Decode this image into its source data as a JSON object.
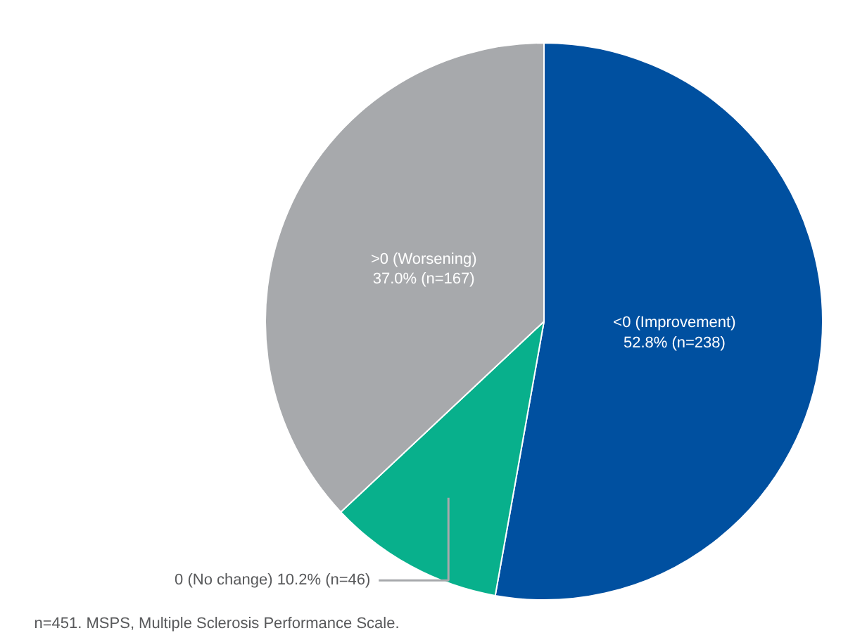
{
  "chart_data": {
    "type": "pie",
    "categories": [
      "<0 (Improvement)",
      "0 (No change)",
      ">0 (Worsening)"
    ],
    "values": [
      52.8,
      10.2,
      37.0
    ],
    "colors": [
      "#0050a0",
      "#08b08c",
      "#a7a9ac"
    ],
    "value_labels": [
      "52.8% (n=238)",
      "10.2% (n=46)",
      "37.0% (n=167)"
    ],
    "annotations": [
      "n=451. MSPS, Multiple Sclerosis Performance Scale."
    ]
  }
}
